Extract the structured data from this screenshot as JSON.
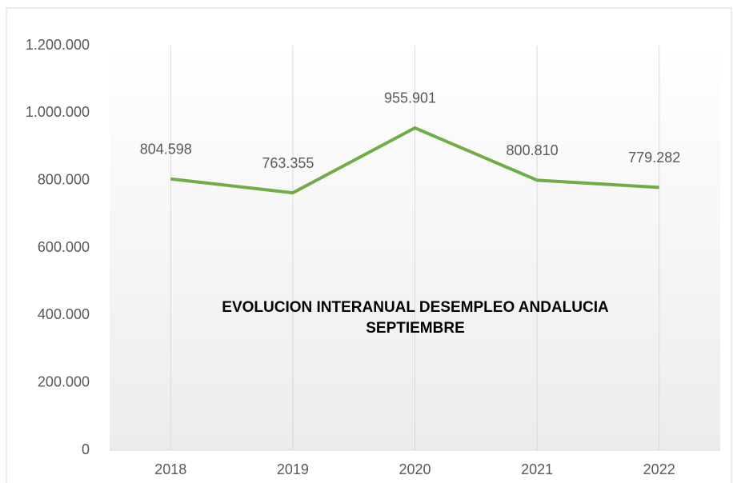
{
  "chart_data": {
    "type": "line",
    "title_lines": [
      "EVOLUCION INTERANUAL DESEMPLEO ANDALUCIA",
      "SEPTIEMBRE"
    ],
    "categories": [
      "2018",
      "2019",
      "2020",
      "2021",
      "2022"
    ],
    "series": [
      {
        "color": "#70ad47",
        "values": [
          804598,
          763355,
          955901,
          800810,
          779282
        ],
        "value_labels": [
          "804.598",
          "763.355",
          "955.901",
          "800.810",
          "779.282"
        ]
      }
    ],
    "ylim": [
      0,
      1200000
    ],
    "yticks": [
      0,
      {
        "value": 200000,
        "label": "200.000"
      },
      {
        "value": 400000,
        "label": "400.000"
      },
      {
        "value": 600000,
        "label": "600.000"
      },
      {
        "value": 800000,
        "label": "800.000"
      },
      {
        "value": 1000000,
        "label": "1.000.000"
      },
      {
        "value": 1200000,
        "label": "1.200.000"
      }
    ],
    "grid": "x"
  }
}
